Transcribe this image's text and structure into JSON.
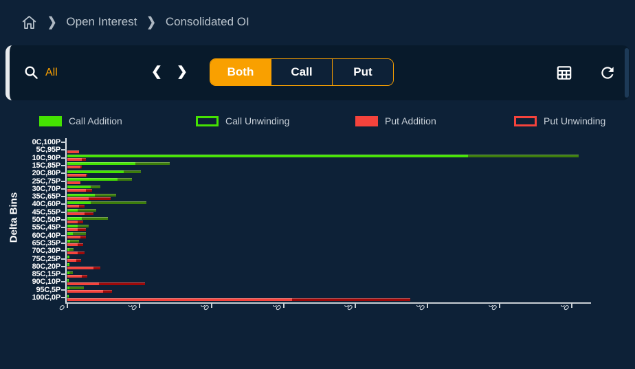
{
  "colors": {
    "page_bg": "#0d2137",
    "card_bg": "#081a2b",
    "accent_orange": "#f9a000",
    "call_addition": "#45e202",
    "call_unwinding": "#3c7d0b",
    "put_addition": "#f5433c",
    "put_unwinding": "#9e0909",
    "axis": "#c9cfd4",
    "text_light": "#c9d1d9"
  },
  "icons": {
    "home": "home-icon",
    "breadcrumb_separator": "❯",
    "search": "magnifier-icon",
    "prev": "❮",
    "next": "❯",
    "table": "table-grid-icon",
    "refresh": "refresh-icon"
  },
  "breadcrumb": {
    "items": [
      "Open Interest",
      "Consolidated OI"
    ]
  },
  "toolbar": {
    "search_value": "All",
    "segments": [
      {
        "label": "Both",
        "active": true
      },
      {
        "label": "Call",
        "active": false
      },
      {
        "label": "Put",
        "active": false
      }
    ]
  },
  "legend": [
    {
      "label": "Call Addition",
      "style": "solid",
      "color": "#45e202"
    },
    {
      "label": "Call Unwinding",
      "style": "hollow",
      "color": "#45e202"
    },
    {
      "label": "Put Addition",
      "style": "solid",
      "color": "#f5433c"
    },
    {
      "label": "Put Unwinding",
      "style": "hollow",
      "color": "#f5433c"
    }
  ],
  "chart_data": {
    "type": "bar",
    "orientation": "horizontal",
    "ylabel": "Delta Bins",
    "xlabel": "",
    "grid": false,
    "legend_position": "top",
    "categories": [
      "0C,100P",
      "5C,95P",
      "10C,90P",
      "15C,85P",
      "20C,80P",
      "25C,75P",
      "30C,70P",
      "35C,65P",
      "40C,60P",
      "45C,55P",
      "50C,50P",
      "55C,45P",
      "60C,40P",
      "65C,35P",
      "70C,30P",
      "75C,25P",
      "80C,20P",
      "85C,15P",
      "90C,10P",
      "95C,5P",
      "100C,0P"
    ],
    "series": [
      {
        "name": "Call Addition",
        "color": "#45e202",
        "stack": "call",
        "values": [
          0,
          0,
          278,
          47,
          39,
          35,
          16,
          19,
          16,
          7,
          10,
          7,
          4,
          2,
          1.5,
          1.5,
          1.5,
          1.5,
          1,
          1.5,
          1
        ]
      },
      {
        "name": "Call Unwinding",
        "color": "#3c7d0b",
        "stack": "call",
        "values": [
          0,
          0,
          77,
          24,
          12,
          10,
          7,
          15,
          39,
          13,
          18,
          8,
          9,
          6,
          3,
          0,
          0,
          2.5,
          0,
          10,
          0
        ]
      },
      {
        "name": "Put Addition",
        "color": "#f5433c",
        "stack": "put",
        "values": [
          0,
          8,
          10,
          9,
          13,
          9,
          13,
          15,
          8,
          12,
          7,
          7,
          9,
          7,
          7,
          6,
          18,
          10,
          22,
          25,
          156
        ]
      },
      {
        "name": "Put Unwinding",
        "color": "#9e0909",
        "stack": "put",
        "values": [
          0,
          0,
          3,
          1,
          1,
          0,
          4,
          15,
          4,
          6,
          4,
          6,
          4,
          4,
          5,
          3.5,
          5,
          4,
          32,
          6,
          82
        ]
      }
    ],
    "x_ticks": [
      "0",
      "50",
      "100",
      "150",
      "200",
      "250",
      "300",
      "350"
    ],
    "xlim": [
      0,
      363
    ]
  }
}
